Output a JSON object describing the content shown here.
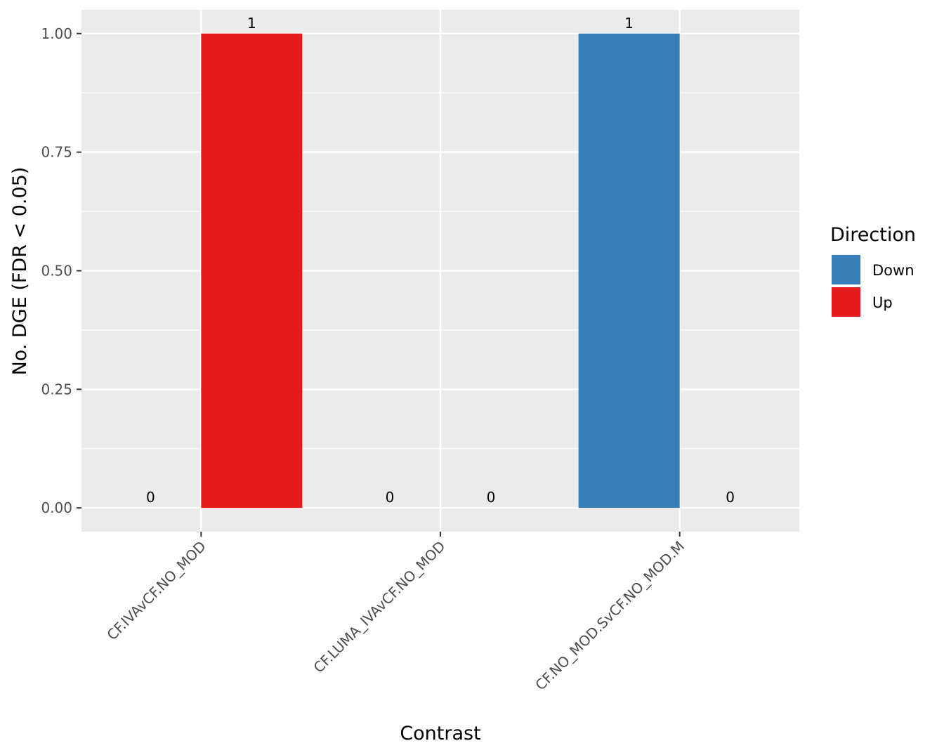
{
  "chart_data": {
    "type": "bar",
    "title": "",
    "xlabel": "Contrast",
    "ylabel": "No. DGE (FDR < 0.05)",
    "categories": [
      "CF.IVAvCF.NO_MOD",
      "CF.LUMA_IVAvCF.NO_MOD",
      "CF.NO_MOD.SvCF.NO_MOD.M"
    ],
    "series": [
      {
        "name": "Down",
        "color": "#377EB8",
        "values": [
          0,
          0,
          1
        ]
      },
      {
        "name": "Up",
        "color": "#E41A1C",
        "values": [
          1,
          0,
          0
        ]
      }
    ],
    "bar_labels": [
      [
        "0",
        "0",
        "1"
      ],
      [
        "1",
        "0",
        "0"
      ]
    ],
    "ylim": [
      -0.05,
      1.05
    ],
    "yticks": [
      0,
      0.25,
      0.5,
      0.75,
      1
    ],
    "ytick_labels": [
      "0.00",
      "0.25",
      "0.50",
      "0.75",
      "1.00"
    ],
    "legend": {
      "title": "Direction",
      "position": "right"
    },
    "grid": true,
    "panel_background": "#EBEBEB",
    "gridline_color": "#FFFFFF"
  }
}
